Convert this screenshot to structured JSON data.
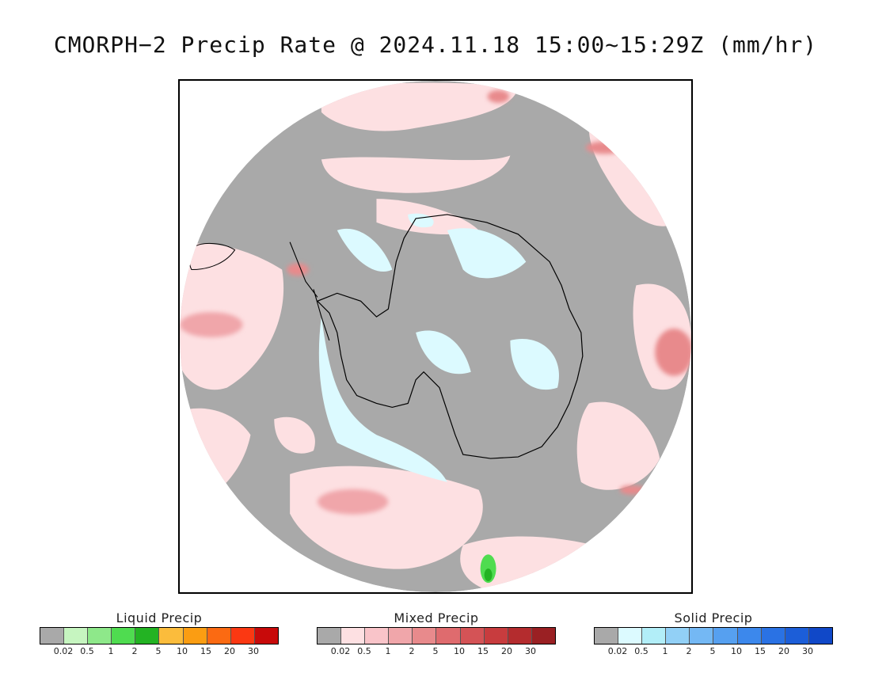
{
  "title": "CMORPH−2 Precip Rate @ 2024.11.18 15:00~15:29Z (mm/hr)",
  "map": {
    "projection": "south-polar-stereographic",
    "background_color": "#a9a9a9",
    "coastline_color": "#000000"
  },
  "legends": [
    {
      "title": "Liquid Precip",
      "colors": [
        "#a9a9a9",
        "#c6f5c0",
        "#8ee88a",
        "#4fdc50",
        "#23b323",
        "#fbbc3c",
        "#fb9d12",
        "#fb6a12",
        "#fb3812",
        "#c80a0a"
      ],
      "ticks": [
        "0.02",
        "0.5",
        "1",
        "2",
        "5",
        "10",
        "15",
        "20",
        "30"
      ]
    },
    {
      "title": "Mixed Precip",
      "colors": [
        "#a9a9a9",
        "#fde0e2",
        "#f9c4c9",
        "#f0a6aa",
        "#e88a8c",
        "#df6b6e",
        "#d45356",
        "#c83c3e",
        "#b42c2e",
        "#9a2023"
      ],
      "ticks": [
        "0.02",
        "0.5",
        "1",
        "2",
        "5",
        "10",
        "15",
        "20",
        "30"
      ]
    },
    {
      "title": "Solid Precip",
      "colors": [
        "#a9a9a9",
        "#dcfaff",
        "#b2eef8",
        "#92d0f6",
        "#74b8f4",
        "#56a0f0",
        "#3c88ec",
        "#2a72e4",
        "#1c5ed8",
        "#1048c8"
      ],
      "ticks": [
        "0.02",
        "0.5",
        "1",
        "2",
        "5",
        "10",
        "15",
        "20",
        "30"
      ]
    }
  ]
}
